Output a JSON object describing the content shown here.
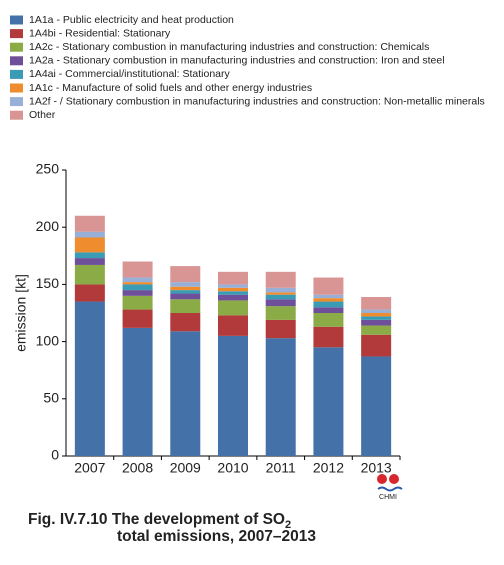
{
  "chart_data": {
    "type": "stacked_bar",
    "ylabel": "emission [kt]",
    "categories": [
      "2007",
      "2008",
      "2009",
      "2010",
      "2011",
      "2012",
      "2013"
    ],
    "series": [
      {
        "name": "1A1a - Public electricity and heat production",
        "color": "#4472a8",
        "values": [
          135,
          112,
          109,
          105,
          103,
          95,
          87
        ]
      },
      {
        "name": "1A4bi - Residential: Stationary",
        "color": "#b23a3a",
        "values": [
          15,
          16,
          16,
          18,
          16,
          18,
          19
        ]
      },
      {
        "name": "1A2c - Stationary combustion in manufacturing industries and construction: Chemicals",
        "color": "#8aab45",
        "values": [
          17,
          12,
          12,
          13,
          12,
          12,
          8
        ]
      },
      {
        "name": "1A2a - Stationary combustion in manufacturing industries and construction: Iron and steel",
        "color": "#6e4f9a",
        "values": [
          6,
          5,
          5,
          5,
          6,
          5,
          5
        ]
      },
      {
        "name": "1A4ai -  Commercial/institutional: Stationary",
        "color": "#3a9bb5",
        "values": [
          5,
          5,
          3,
          3,
          4,
          5,
          3
        ]
      },
      {
        "name": "1A1c - Manufacture of solid fuels and other energy industries",
        "color": "#ef8c2e",
        "values": [
          13,
          2,
          3,
          3,
          2,
          3,
          3
        ]
      },
      {
        "name": "1A2f -  / Stationary combustion in manufacturing industries and construction: Non-metallic minerals",
        "color": "#98b0d8",
        "values": [
          5,
          4,
          4,
          3,
          4,
          3,
          3
        ]
      },
      {
        "name": "Other",
        "color": "#d99594",
        "values": [
          14,
          14,
          14,
          11,
          14,
          15,
          11
        ]
      }
    ],
    "ylim": [
      0,
      250
    ],
    "yticks": [
      0,
      50,
      100,
      150,
      200,
      250
    ],
    "grid": false,
    "legend": "top"
  },
  "caption": {
    "line1": "Fig. IV.7.10  The development of SO",
    "subscript": "2",
    "line2": "total emissions, 2007–2013"
  },
  "logo": "CHMI"
}
